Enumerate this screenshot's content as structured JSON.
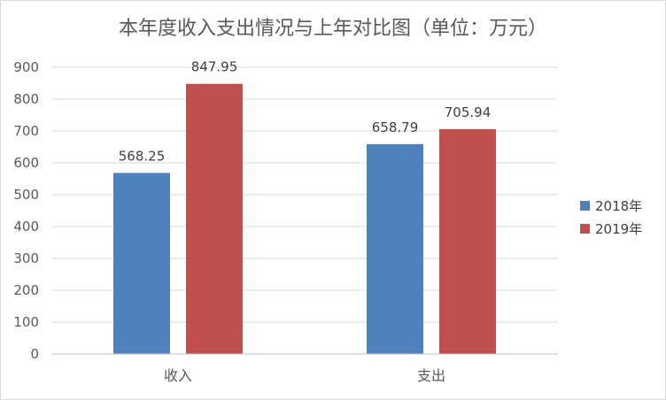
{
  "chart_data": {
    "type": "bar",
    "title": "本年度收入支出情况与上年对比图（单位：万元）",
    "categories": [
      "收入",
      "支出"
    ],
    "series": [
      {
        "name": "2018年",
        "color": "#4f81bd",
        "values": [
          568.25,
          658.79
        ],
        "labels": [
          "568.25",
          "658.79"
        ]
      },
      {
        "name": "2019年",
        "color": "#c0504d",
        "values": [
          847.95,
          705.94
        ],
        "labels": [
          "847.95",
          "705.94"
        ]
      }
    ],
    "ylim": [
      0,
      900
    ],
    "yticks": [
      0,
      100,
      200,
      300,
      400,
      500,
      600,
      700,
      800,
      900
    ],
    "grid": true,
    "legend_position": "right",
    "xlabel": "",
    "ylabel": ""
  }
}
